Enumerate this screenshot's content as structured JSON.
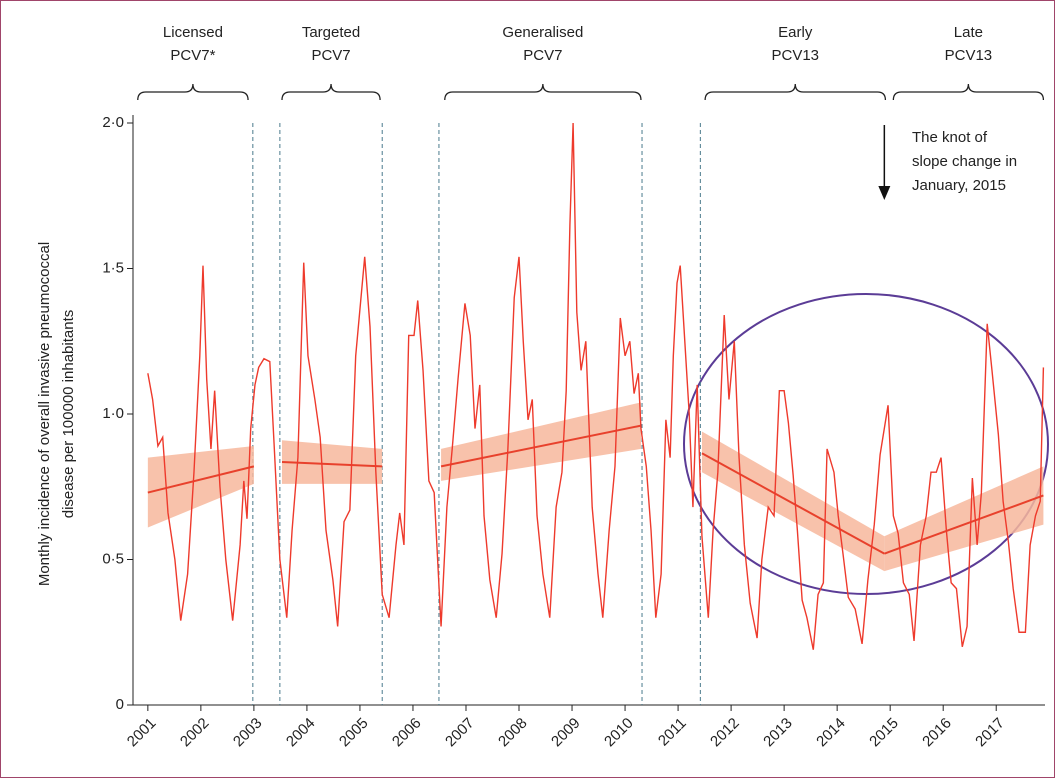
{
  "chart_data": {
    "type": "line",
    "y_label_lines": [
      "Monthly incidence of overall invasive pneumococcal",
      "disease per 100000 inhabitants"
    ],
    "xlim": [
      2000.72,
      2017.92
    ],
    "ylim": [
      0,
      2.0
    ],
    "xticks": [
      2001,
      2002,
      2003,
      2004,
      2005,
      2006,
      2007,
      2008,
      2009,
      2010,
      2011,
      2012,
      2013,
      2014,
      2015,
      2016,
      2017
    ],
    "yticks": [
      {
        "value": 0,
        "label": "0"
      },
      {
        "value": 0.5,
        "label": "0·5"
      },
      {
        "value": 1.0,
        "label": "1·0"
      },
      {
        "value": 1.5,
        "label": "1·5"
      },
      {
        "value": 2.0,
        "label": "2·0"
      }
    ],
    "x": [
      2001.0,
      2001.09,
      2001.19,
      2001.28,
      2001.38,
      2001.51,
      2001.62,
      2001.75,
      2001.87,
      2001.98,
      2002.04,
      2002.11,
      2002.19,
      2002.26,
      2002.36,
      2002.47,
      2002.6,
      2002.74,
      2002.81,
      2002.87,
      2002.94,
      2003.02,
      2003.09,
      2003.19,
      2003.3,
      2003.38,
      2003.49,
      2003.62,
      2003.72,
      2003.83,
      2003.94,
      2004.02,
      2004.15,
      2004.25,
      2004.36,
      2004.49,
      2004.58,
      2004.7,
      2004.81,
      2004.92,
      2005.09,
      2005.19,
      2005.3,
      2005.42,
      2005.55,
      2005.68,
      2005.75,
      2005.83,
      2005.92,
      2006.02,
      2006.09,
      2006.19,
      2006.3,
      2006.4,
      2006.53,
      2006.64,
      2006.74,
      2006.85,
      2006.98,
      2007.08,
      2007.17,
      2007.26,
      2007.34,
      2007.45,
      2007.57,
      2007.68,
      2007.79,
      2007.91,
      2008.0,
      2008.08,
      2008.17,
      2008.25,
      2008.34,
      2008.45,
      2008.58,
      2008.7,
      2008.81,
      2008.89,
      2008.96,
      2009.02,
      2009.09,
      2009.17,
      2009.26,
      2009.38,
      2009.49,
      2009.58,
      2009.7,
      2009.81,
      2009.91,
      2010.0,
      2010.09,
      2010.17,
      2010.25,
      2010.3,
      2010.4,
      2010.49,
      2010.58,
      2010.68,
      2010.77,
      2010.85,
      2010.91,
      2010.98,
      2011.04,
      2011.11,
      2011.21,
      2011.28,
      2011.36,
      2011.45,
      2011.57,
      2011.66,
      2011.75,
      2011.87,
      2011.96,
      2012.06,
      2012.15,
      2012.25,
      2012.36,
      2012.49,
      2012.58,
      2012.7,
      2012.81,
      2012.91,
      2013.0,
      2013.08,
      2013.17,
      2013.25,
      2013.34,
      2013.43,
      2013.55,
      2013.64,
      2013.74,
      2013.81,
      2013.94,
      2014.02,
      2014.11,
      2014.21,
      2014.34,
      2014.47,
      2014.58,
      2014.7,
      2014.81,
      2014.96,
      2015.06,
      2015.15,
      2015.25,
      2015.36,
      2015.45,
      2015.57,
      2015.68,
      2015.77,
      2015.87,
      2015.96,
      2016.06,
      2016.15,
      2016.25,
      2016.36,
      2016.45,
      2016.55,
      2016.64,
      2016.72,
      2016.83,
      2016.92,
      2017.04,
      2017.13,
      2017.23,
      2017.32,
      2017.43,
      2017.55,
      2017.64,
      2017.74,
      2017.83,
      2017.89
    ],
    "series": [
      {
        "color": "#ee3a2c",
        "values": [
          1.14,
          1.05,
          0.89,
          0.92,
          0.66,
          0.5,
          0.29,
          0.45,
          0.8,
          1.2,
          1.51,
          1.12,
          0.88,
          1.08,
          0.75,
          0.5,
          0.29,
          0.55,
          0.77,
          0.64,
          0.95,
          1.1,
          1.16,
          1.19,
          1.18,
          0.9,
          0.5,
          0.3,
          0.6,
          0.85,
          1.52,
          1.2,
          1.05,
          0.92,
          0.6,
          0.43,
          0.27,
          0.63,
          0.67,
          1.2,
          1.54,
          1.3,
          0.8,
          0.38,
          0.3,
          0.55,
          0.66,
          0.55,
          1.27,
          1.27,
          1.39,
          1.15,
          0.77,
          0.73,
          0.27,
          0.68,
          0.88,
          1.12,
          1.38,
          1.27,
          0.95,
          1.1,
          0.65,
          0.43,
          0.3,
          0.52,
          0.88,
          1.4,
          1.54,
          1.25,
          0.98,
          1.05,
          0.65,
          0.45,
          0.3,
          0.68,
          0.8,
          1.08,
          1.65,
          2.0,
          1.35,
          1.15,
          1.25,
          0.68,
          0.45,
          0.3,
          0.6,
          0.82,
          1.33,
          1.2,
          1.25,
          1.07,
          1.14,
          0.95,
          0.82,
          0.6,
          0.3,
          0.45,
          0.98,
          0.85,
          1.2,
          1.45,
          1.51,
          1.3,
          1.0,
          0.68,
          1.1,
          0.58,
          0.3,
          0.6,
          0.8,
          1.34,
          1.05,
          1.25,
          0.85,
          0.55,
          0.35,
          0.23,
          0.5,
          0.68,
          0.65,
          1.08,
          1.08,
          0.97,
          0.79,
          0.6,
          0.36,
          0.3,
          0.19,
          0.38,
          0.42,
          0.88,
          0.8,
          0.65,
          0.52,
          0.37,
          0.33,
          0.21,
          0.43,
          0.62,
          0.86,
          1.03,
          0.65,
          0.59,
          0.42,
          0.38,
          0.22,
          0.55,
          0.65,
          0.8,
          0.8,
          0.85,
          0.6,
          0.42,
          0.4,
          0.2,
          0.27,
          0.78,
          0.55,
          0.73,
          1.31,
          1.15,
          0.93,
          0.7,
          0.56,
          0.4,
          0.25,
          0.25,
          0.55,
          0.65,
          0.7,
          1.16
        ]
      }
    ],
    "trend_color": "#e8412c",
    "band_color": "#f7b79c",
    "trends": [
      {
        "x": [
          2001.0,
          2003.0
        ],
        "values": [
          0.73,
          0.82
        ],
        "lower": [
          0.61,
          0.76
        ],
        "upper": [
          0.85,
          0.89
        ]
      },
      {
        "x": [
          2003.53,
          2005.42
        ],
        "values": [
          0.835,
          0.82
        ],
        "lower": [
          0.76,
          0.76
        ],
        "upper": [
          0.91,
          0.88
        ]
      },
      {
        "x": [
          2006.53,
          2010.3
        ],
        "values": [
          0.82,
          0.96
        ],
        "lower": [
          0.77,
          0.88
        ],
        "upper": [
          0.88,
          1.04
        ]
      },
      {
        "x": [
          2011.45,
          2014.89
        ],
        "values": [
          0.865,
          0.52
        ],
        "lower": [
          0.8,
          0.46
        ],
        "upper": [
          0.94,
          0.58
        ]
      },
      {
        "x": [
          2014.89,
          2017.89
        ],
        "values": [
          0.52,
          0.72
        ],
        "lower": [
          0.46,
          0.62
        ],
        "upper": [
          0.58,
          0.82
        ]
      }
    ],
    "period_lines": [
      2002.98,
      2003.49,
      2005.42,
      2006.49,
      2010.32,
      2011.42
    ],
    "periods": [
      {
        "label_lines": [
          "Licensed",
          "PCV7*"
        ],
        "x": [
          2000.81,
          2002.89
        ]
      },
      {
        "label_lines": [
          "Targeted",
          "PCV7"
        ],
        "x": [
          2003.53,
          2005.38
        ]
      },
      {
        "label_lines": [
          "Generalised",
          "PCV7"
        ],
        "x": [
          2006.6,
          2010.3
        ]
      },
      {
        "label_lines": [
          "Early",
          "PCV13"
        ],
        "x": [
          2011.51,
          2014.91
        ]
      },
      {
        "label_lines": [
          "Late",
          "PCV13"
        ],
        "x": [
          2015.06,
          2017.89
        ]
      }
    ],
    "annotation": {
      "text_lines": [
        "The knot of",
        "slope change in",
        "January, 2015"
      ],
      "x": 2014.89
    }
  }
}
